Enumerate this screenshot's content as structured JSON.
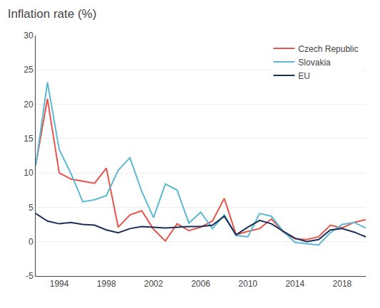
{
  "chart_data": {
    "type": "line",
    "title": "Inflation rate (%)",
    "x": [
      1992,
      1993,
      1994,
      1995,
      1996,
      1997,
      1998,
      1999,
      2000,
      2001,
      2002,
      2003,
      2004,
      2005,
      2006,
      2007,
      2008,
      2009,
      2010,
      2011,
      2012,
      2013,
      2014,
      2015,
      2016,
      2017,
      2018,
      2019,
      2020
    ],
    "series": [
      {
        "name": "Czech Republic",
        "color": "#e8534a",
        "values": [
          11.1,
          20.8,
          10.0,
          9.1,
          8.8,
          8.5,
          10.7,
          2.1,
          3.9,
          4.5,
          1.8,
          0.1,
          2.6,
          1.6,
          2.1,
          3.0,
          6.3,
          1.0,
          1.5,
          1.9,
          3.3,
          1.4,
          0.4,
          0.3,
          0.7,
          2.4,
          2.0,
          2.8,
          3.2
        ]
      },
      {
        "name": "Slovakia",
        "color": "#5bb8d4",
        "values": [
          11.0,
          23.2,
          13.4,
          9.9,
          5.8,
          6.1,
          6.7,
          10.4,
          12.2,
          7.3,
          3.5,
          8.4,
          7.5,
          2.7,
          4.3,
          1.9,
          3.9,
          0.9,
          0.7,
          4.1,
          3.7,
          1.5,
          -0.1,
          -0.3,
          -0.5,
          1.3,
          2.5,
          2.8,
          2.0
        ]
      },
      {
        "name": "EU",
        "color": "#1a2e5a",
        "values": [
          4.1,
          3.0,
          2.6,
          2.8,
          2.5,
          2.4,
          1.7,
          1.3,
          1.9,
          2.2,
          2.1,
          2.0,
          2.1,
          2.2,
          2.2,
          2.4,
          3.7,
          1.0,
          2.1,
          3.1,
          2.6,
          1.5,
          0.5,
          0.0,
          0.3,
          1.7,
          1.9,
          1.4,
          0.7
        ]
      }
    ],
    "xlim": [
      1992,
      2020
    ],
    "xticks": [
      1994,
      1998,
      2002,
      2006,
      2010,
      2014,
      2018
    ],
    "ylim": [
      -5,
      30
    ],
    "yticks": [
      -5,
      0,
      5,
      10,
      15,
      20,
      25,
      30
    ],
    "grid": true,
    "legend": "upper right"
  }
}
